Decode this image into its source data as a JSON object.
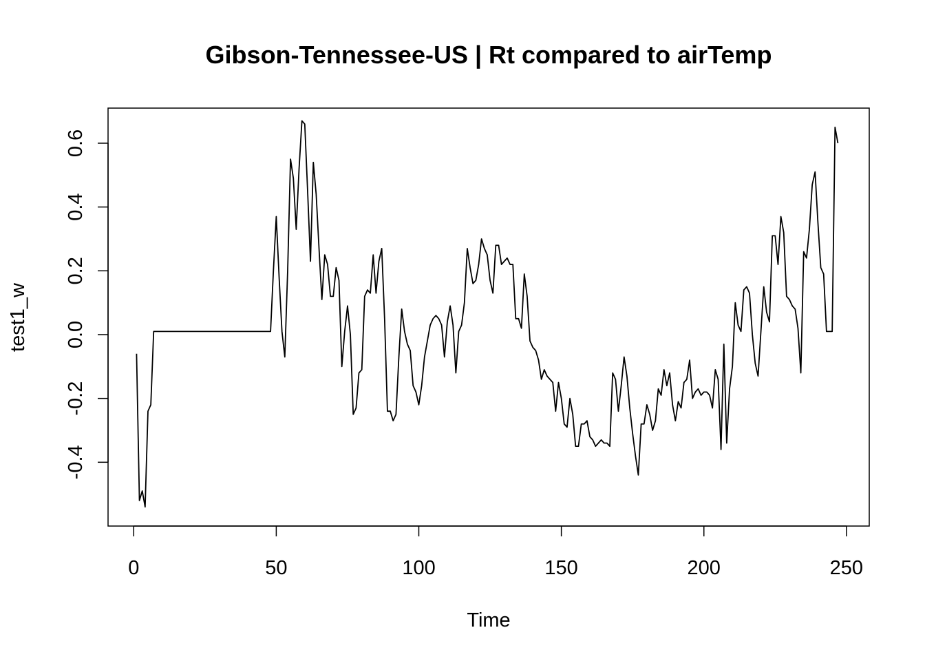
{
  "chart_data": {
    "type": "line",
    "title": "Gibson-Tennessee-US | Rt compared to airTemp",
    "xlabel": "Time",
    "ylabel": "test1_w",
    "xlim": [
      -9,
      258
    ],
    "ylim": [
      -0.6,
      0.71
    ],
    "x_ticks": [
      0,
      50,
      100,
      150,
      200,
      250
    ],
    "y_ticks": [
      -0.4,
      -0.2,
      0.0,
      0.2,
      0.4,
      0.6
    ],
    "x_tick_labels": [
      "0",
      "50",
      "100",
      "150",
      "200",
      "250"
    ],
    "y_tick_labels": [
      "-0.4",
      "-0.2",
      "0.0",
      "0.2",
      "0.4",
      "0.6"
    ],
    "grid": false,
    "legend": "none",
    "line_color": "#000000",
    "x_start": 1,
    "x_step": 1,
    "values": [
      -0.06,
      -0.52,
      -0.49,
      -0.54,
      -0.24,
      -0.22,
      0.01,
      0.01,
      0.01,
      0.01,
      0.01,
      0.01,
      0.01,
      0.01,
      0.01,
      0.01,
      0.01,
      0.01,
      0.01,
      0.01,
      0.01,
      0.01,
      0.01,
      0.01,
      0.01,
      0.01,
      0.01,
      0.01,
      0.01,
      0.01,
      0.01,
      0.01,
      0.01,
      0.01,
      0.01,
      0.01,
      0.01,
      0.01,
      0.01,
      0.01,
      0.01,
      0.01,
      0.01,
      0.01,
      0.01,
      0.01,
      0.01,
      0.01,
      0.2,
      0.37,
      0.18,
      0.01,
      -0.07,
      0.2,
      0.55,
      0.49,
      0.33,
      0.52,
      0.67,
      0.66,
      0.45,
      0.23,
      0.54,
      0.44,
      0.27,
      0.11,
      0.25,
      0.22,
      0.12,
      0.12,
      0.21,
      0.17,
      -0.1,
      0.01,
      0.09,
      0.0,
      -0.25,
      -0.23,
      -0.12,
      -0.11,
      0.12,
      0.14,
      0.13,
      0.25,
      0.13,
      0.23,
      0.27,
      0.05,
      -0.24,
      -0.24,
      -0.27,
      -0.25,
      -0.07,
      0.08,
      0.01,
      -0.03,
      -0.05,
      -0.16,
      -0.18,
      -0.22,
      -0.16,
      -0.07,
      -0.02,
      0.03,
      0.05,
      0.06,
      0.05,
      0.03,
      -0.07,
      0.04,
      0.09,
      0.03,
      -0.12,
      0.01,
      0.03,
      0.1,
      0.27,
      0.21,
      0.16,
      0.17,
      0.22,
      0.3,
      0.27,
      0.25,
      0.17,
      0.13,
      0.28,
      0.28,
      0.22,
      0.23,
      0.24,
      0.22,
      0.22,
      0.05,
      0.05,
      0.02,
      0.19,
      0.12,
      -0.02,
      -0.04,
      -0.05,
      -0.08,
      -0.14,
      -0.11,
      -0.13,
      -0.14,
      -0.15,
      -0.24,
      -0.15,
      -0.2,
      -0.28,
      -0.29,
      -0.2,
      -0.25,
      -0.35,
      -0.35,
      -0.28,
      -0.28,
      -0.27,
      -0.32,
      -0.33,
      -0.35,
      -0.34,
      -0.33,
      -0.34,
      -0.34,
      -0.35,
      -0.12,
      -0.14,
      -0.24,
      -0.16,
      -0.07,
      -0.13,
      -0.23,
      -0.31,
      -0.38,
      -0.44,
      -0.28,
      -0.28,
      -0.22,
      -0.25,
      -0.3,
      -0.27,
      -0.17,
      -0.19,
      -0.11,
      -0.16,
      -0.12,
      -0.22,
      -0.27,
      -0.21,
      -0.23,
      -0.15,
      -0.14,
      -0.08,
      -0.2,
      -0.18,
      -0.17,
      -0.19,
      -0.18,
      -0.18,
      -0.19,
      -0.23,
      -0.11,
      -0.14,
      -0.36,
      -0.03,
      -0.34,
      -0.17,
      -0.1,
      0.1,
      0.03,
      0.01,
      0.14,
      0.15,
      0.13,
      0.0,
      -0.09,
      -0.13,
      0.01,
      0.15,
      0.07,
      0.04,
      0.31,
      0.31,
      0.22,
      0.37,
      0.32,
      0.12,
      0.11,
      0.09,
      0.08,
      0.02,
      -0.12,
      0.26,
      0.24,
      0.33,
      0.47,
      0.51,
      0.35,
      0.21,
      0.19,
      0.01,
      0.01,
      0.01,
      0.65,
      0.6
    ]
  }
}
